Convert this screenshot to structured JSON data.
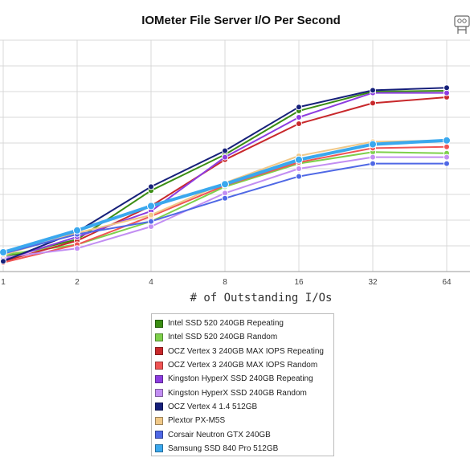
{
  "chart_data": {
    "type": "line",
    "title": "IOMeter File Server I/O Per Second",
    "xlabel": "# of Outstanding I/Os",
    "ylabel": "",
    "categories": [
      "1",
      "2",
      "4",
      "8",
      "16",
      "32",
      "64"
    ],
    "ylim": [
      0,
      9
    ],
    "grid": true,
    "legend_position": "bottom",
    "series": [
      {
        "name": "Intel SSD 520 240GB Repeating",
        "color": "#3a8d13",
        "values": [
          0.55,
          1.25,
          3.15,
          4.55,
          6.25,
          7.0,
          7.03
        ]
      },
      {
        "name": "Intel SSD 520 240GB Random",
        "color": "#7ed04b",
        "values": [
          0.65,
          1.05,
          1.95,
          3.3,
          4.2,
          4.65,
          4.6
        ]
      },
      {
        "name": "OCZ Vertex 3 240GB MAX IOPS Repeating",
        "color": "#c8282b",
        "values": [
          0.4,
          1.2,
          2.55,
          4.35,
          5.75,
          6.55,
          6.78
        ]
      },
      {
        "name": "OCZ Vertex 3 240GB MAX IOPS Random",
        "color": "#f05454",
        "values": [
          0.35,
          1.05,
          2.15,
          3.35,
          4.25,
          4.8,
          4.85
        ]
      },
      {
        "name": "Kingston HyperX SSD 240GB Repeating",
        "color": "#8d3ce0",
        "values": [
          0.45,
          1.35,
          2.35,
          4.45,
          6.0,
          6.95,
          6.95
        ]
      },
      {
        "name": "Kingston HyperX SSD 240GB Random",
        "color": "#c28ef2",
        "values": [
          0.55,
          0.9,
          1.75,
          3.05,
          4.0,
          4.45,
          4.45
        ]
      },
      {
        "name": "OCZ Vertex 4 1.4 512GB",
        "color": "#16207a",
        "values": [
          0.4,
          1.55,
          3.3,
          4.7,
          6.4,
          7.05,
          7.15
        ]
      },
      {
        "name": "Plextor PX-M5S",
        "color": "#f0c888",
        "values": [
          0.65,
          1.5,
          2.2,
          3.45,
          4.5,
          5.05,
          5.1
        ]
      },
      {
        "name": "Corsair Neutron GTX 240GB",
        "color": "#4f68e5",
        "values": [
          0.7,
          1.45,
          1.95,
          2.85,
          3.7,
          4.2,
          4.2
        ]
      },
      {
        "name": "Samsung SSD 840 Pro 512GB",
        "color": "#3aa8ee",
        "values": [
          0.75,
          1.6,
          2.55,
          3.4,
          4.35,
          4.95,
          5.1
        ]
      }
    ]
  }
}
